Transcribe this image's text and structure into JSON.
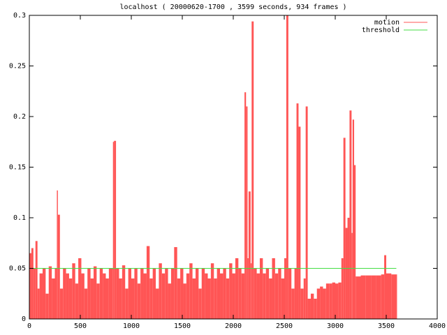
{
  "chart_data": {
    "type": "line",
    "title": "localhost ( 20000620-1700 , 3599 seconds, 934 frames )",
    "xlim": [
      0,
      4000
    ],
    "xticks": [
      0,
      500,
      1000,
      1500,
      2000,
      2500,
      3000,
      3500,
      4000
    ],
    "ylim": [
      0,
      0.3
    ],
    "yticks": [
      0,
      0.05,
      0.1,
      0.15,
      0.2,
      0.25,
      0.3
    ],
    "grid": false,
    "legend": "top-right",
    "series": [
      {
        "name": "motion",
        "color": "#ff5555",
        "style": "impulses",
        "x": [
          0,
          20,
          40,
          60,
          80,
          100,
          130,
          160,
          190,
          220,
          250,
          270,
          280,
          300,
          330,
          360,
          390,
          420,
          450,
          480,
          510,
          540,
          570,
          600,
          630,
          660,
          690,
          720,
          750,
          780,
          820,
          830,
          850,
          880,
          910,
          940,
          970,
          1000,
          1030,
          1060,
          1090,
          1120,
          1150,
          1180,
          1210,
          1240,
          1270,
          1300,
          1330,
          1360,
          1390,
          1420,
          1450,
          1480,
          1510,
          1540,
          1570,
          1600,
          1630,
          1660,
          1690,
          1720,
          1750,
          1780,
          1810,
          1840,
          1870,
          1900,
          1930,
          1960,
          1990,
          2020,
          2050,
          2080,
          2110,
          2125,
          2140,
          2150,
          2170,
          2180,
          2200,
          2230,
          2260,
          2290,
          2320,
          2350,
          2380,
          2410,
          2440,
          2470,
          2500,
          2520,
          2540,
          2570,
          2600,
          2620,
          2640,
          2660,
          2690,
          2710,
          2730,
          2760,
          2790,
          2820,
          2850,
          2880,
          2910,
          2940,
          2970,
          3000,
          3030,
          3060,
          3080,
          3100,
          3120,
          3140,
          3160,
          3170,
          3185,
          3200,
          3250,
          3300,
          3350,
          3400,
          3450,
          3480,
          3500,
          3550,
          3599
        ],
        "values": [
          0.065,
          0.07,
          0.05,
          0.077,
          0.03,
          0.045,
          0.05,
          0.025,
          0.052,
          0.04,
          0.05,
          0.127,
          0.103,
          0.03,
          0.05,
          0.045,
          0.04,
          0.055,
          0.035,
          0.06,
          0.045,
          0.03,
          0.05,
          0.04,
          0.052,
          0.035,
          0.05,
          0.045,
          0.04,
          0.05,
          0.175,
          0.176,
          0.05,
          0.04,
          0.053,
          0.03,
          0.05,
          0.04,
          0.05,
          0.035,
          0.05,
          0.045,
          0.072,
          0.04,
          0.05,
          0.03,
          0.055,
          0.045,
          0.05,
          0.035,
          0.05,
          0.071,
          0.04,
          0.05,
          0.035,
          0.045,
          0.055,
          0.04,
          0.05,
          0.03,
          0.05,
          0.045,
          0.04,
          0.055,
          0.04,
          0.05,
          0.045,
          0.05,
          0.04,
          0.055,
          0.045,
          0.06,
          0.05,
          0.045,
          0.224,
          0.21,
          0.06,
          0.126,
          0.055,
          0.294,
          0.05,
          0.045,
          0.06,
          0.045,
          0.05,
          0.04,
          0.06,
          0.045,
          0.05,
          0.04,
          0.06,
          0.3,
          0.05,
          0.03,
          0.05,
          0.213,
          0.19,
          0.03,
          0.04,
          0.21,
          0.02,
          0.025,
          0.02,
          0.03,
          0.032,
          0.03,
          0.035,
          0.035,
          0.036,
          0.035,
          0.036,
          0.06,
          0.179,
          0.09,
          0.1,
          0.206,
          0.085,
          0.197,
          0.152,
          0.042,
          0.043,
          0.043,
          0.043,
          0.043,
          0.044,
          0.063,
          0.045,
          0.044,
          0.044
        ]
      },
      {
        "name": "threshold",
        "color": "#44dd44",
        "style": "lines",
        "x": [
          0,
          3599
        ],
        "values": [
          0.05,
          0.05
        ]
      }
    ]
  }
}
